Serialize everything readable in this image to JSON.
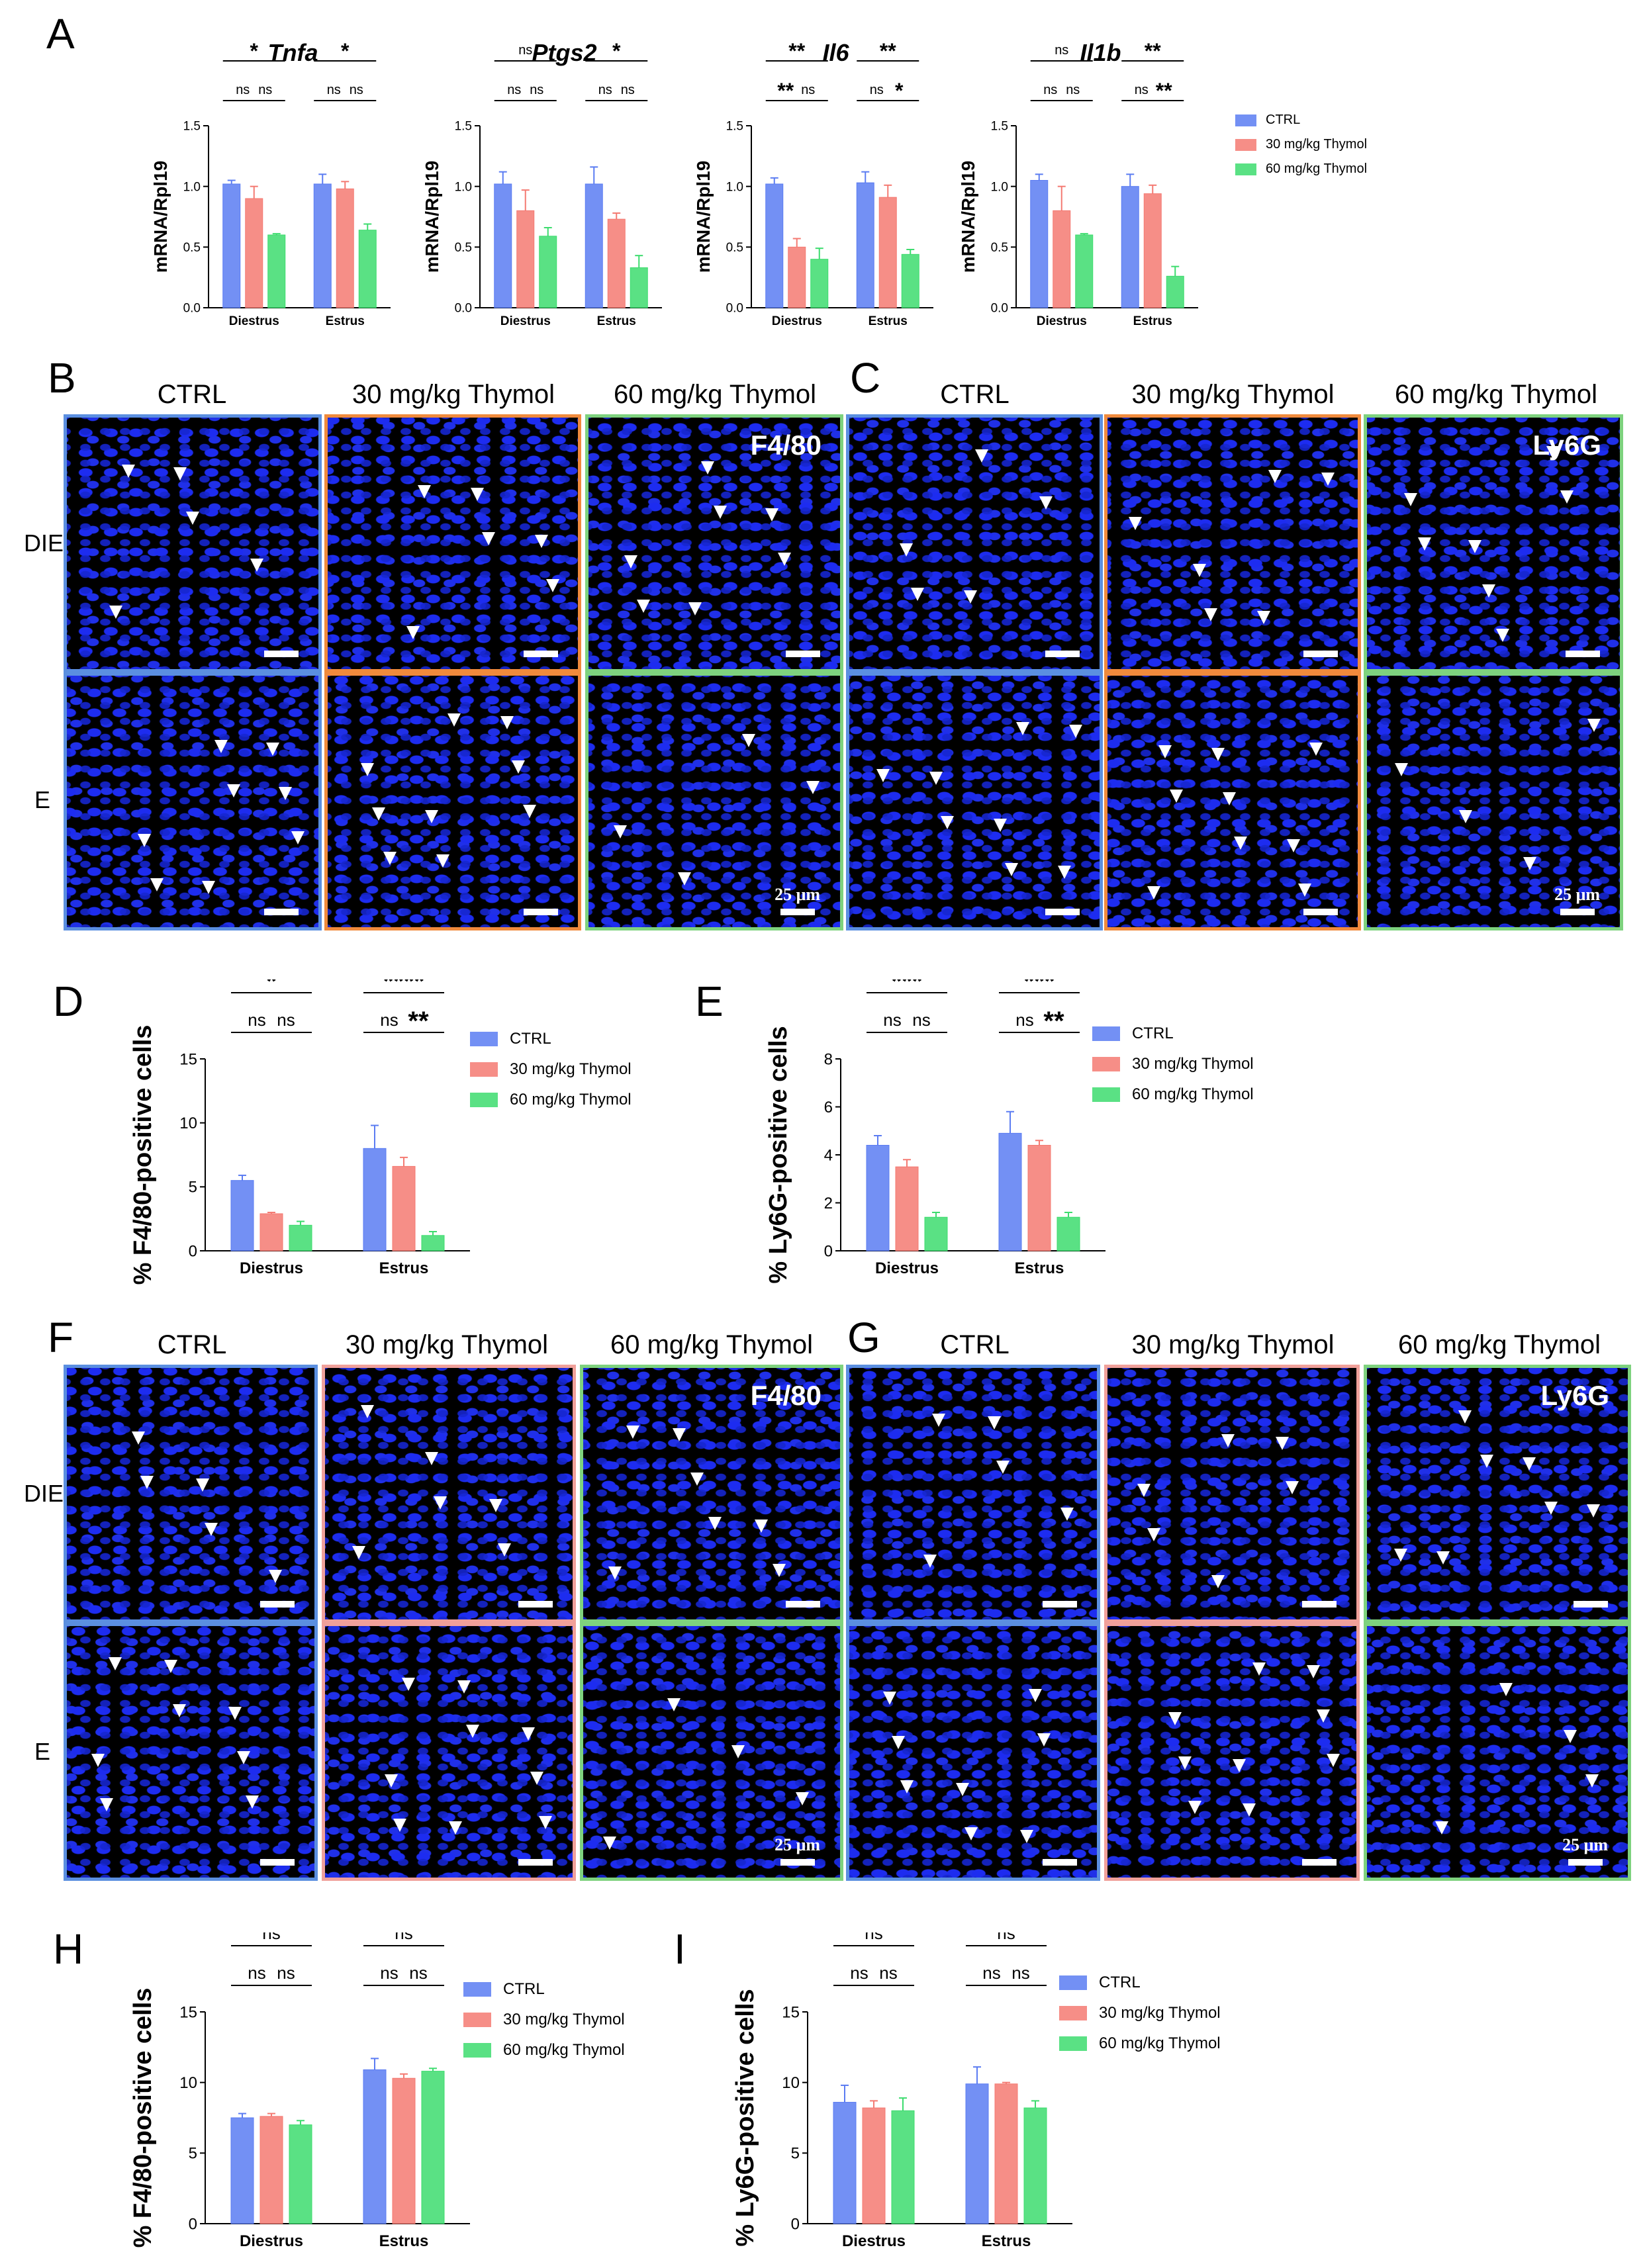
{
  "panels": {
    "A": "A",
    "B": "B",
    "C": "C",
    "D": "D",
    "E": "E",
    "F": "F",
    "G": "G",
    "H": "H",
    "I": "I"
  },
  "legend": [
    "CTRL",
    "30 mg/kg Thymol",
    "60 mg/kg Thymol"
  ],
  "colors": {
    "ctrl": "#5b7cf2",
    "t30": "#f47a72",
    "t60": "#3ddc6e"
  },
  "micro": {
    "cols": [
      "CTRL",
      "30 mg/kg Thymol",
      "60 mg/kg Thymol"
    ],
    "rows": [
      "DIE",
      "E"
    ],
    "stain_BF": "F4/80",
    "stain_CG": "Ly6G",
    "scale": "25 μm"
  },
  "chart_data": [
    {
      "id": "A-Tnfa",
      "type": "bar",
      "title": "Tnfa",
      "ylabel": "mRNA/Rpl19",
      "categories": [
        "Diestrus",
        "Estrus"
      ],
      "ylim": [
        0,
        1.5
      ],
      "yticks": [
        "0.0",
        "0.5",
        "1.0",
        "1.5"
      ],
      "series": [
        {
          "name": "CTRL",
          "values": [
            1.02,
            1.02
          ],
          "err": [
            0.03,
            0.08
          ]
        },
        {
          "name": "30 mg/kg Thymol",
          "values": [
            0.9,
            0.98
          ],
          "err": [
            0.1,
            0.06
          ]
        },
        {
          "name": "60 mg/kg Thymol",
          "values": [
            0.6,
            0.64
          ],
          "err": [
            0.01,
            0.05
          ]
        }
      ],
      "sig": [
        {
          "g": 0,
          "a": 0,
          "b": 2,
          "l": "*",
          "lvl": 1
        },
        {
          "g": 0,
          "a": 0,
          "b": 1,
          "l": "ns",
          "lvl": 0
        },
        {
          "g": 0,
          "a": 1,
          "b": 2,
          "l": "ns",
          "lvl": 0
        },
        {
          "g": 1,
          "a": 0,
          "b": 2,
          "l": "*",
          "lvl": 1
        },
        {
          "g": 1,
          "a": 0,
          "b": 1,
          "l": "ns",
          "lvl": 0
        },
        {
          "g": 1,
          "a": 1,
          "b": 2,
          "l": "ns",
          "lvl": 0
        }
      ]
    },
    {
      "id": "A-Ptgs2",
      "type": "bar",
      "title": "Ptgs2",
      "ylabel": "mRNA/Rpl19",
      "categories": [
        "Diestrus",
        "Estrus"
      ],
      "ylim": [
        0,
        1.5
      ],
      "yticks": [
        "0.0",
        "0.5",
        "1.0",
        "1.5"
      ],
      "series": [
        {
          "name": "CTRL",
          "values": [
            1.02,
            1.02
          ],
          "err": [
            0.1,
            0.14
          ]
        },
        {
          "name": "30 mg/kg Thymol",
          "values": [
            0.8,
            0.73
          ],
          "err": [
            0.17,
            0.05
          ]
        },
        {
          "name": "60 mg/kg Thymol",
          "values": [
            0.59,
            0.33
          ],
          "err": [
            0.07,
            0.1
          ]
        }
      ],
      "sig": [
        {
          "g": 0,
          "a": 0,
          "b": 2,
          "l": "ns",
          "lvl": 1
        },
        {
          "g": 0,
          "a": 0,
          "b": 1,
          "l": "ns",
          "lvl": 0
        },
        {
          "g": 0,
          "a": 1,
          "b": 2,
          "l": "ns",
          "lvl": 0
        },
        {
          "g": 1,
          "a": 0,
          "b": 2,
          "l": "*",
          "lvl": 1
        },
        {
          "g": 1,
          "a": 0,
          "b": 1,
          "l": "ns",
          "lvl": 0
        },
        {
          "g": 1,
          "a": 1,
          "b": 2,
          "l": "ns",
          "lvl": 0
        }
      ]
    },
    {
      "id": "A-Il6",
      "type": "bar",
      "title": "Il6",
      "ylabel": "mRNA/Rpl19",
      "categories": [
        "Diestrus",
        "Estrus"
      ],
      "ylim": [
        0,
        1.5
      ],
      "yticks": [
        "0.0",
        "0.5",
        "1.0",
        "1.5"
      ],
      "series": [
        {
          "name": "CTRL",
          "values": [
            1.02,
            1.03
          ],
          "err": [
            0.05,
            0.09
          ]
        },
        {
          "name": "30 mg/kg Thymol",
          "values": [
            0.5,
            0.91
          ],
          "err": [
            0.07,
            0.1
          ]
        },
        {
          "name": "60 mg/kg Thymol",
          "values": [
            0.4,
            0.44
          ],
          "err": [
            0.09,
            0.04
          ]
        }
      ],
      "sig": [
        {
          "g": 0,
          "a": 0,
          "b": 2,
          "l": "**",
          "lvl": 1
        },
        {
          "g": 0,
          "a": 0,
          "b": 1,
          "l": "**",
          "lvl": 0
        },
        {
          "g": 0,
          "a": 1,
          "b": 2,
          "l": "ns",
          "lvl": 0
        },
        {
          "g": 1,
          "a": 0,
          "b": 2,
          "l": "**",
          "lvl": 1
        },
        {
          "g": 1,
          "a": 0,
          "b": 1,
          "l": "ns",
          "lvl": 0
        },
        {
          "g": 1,
          "a": 1,
          "b": 2,
          "l": "*",
          "lvl": 0
        }
      ]
    },
    {
      "id": "A-Il1b",
      "type": "bar",
      "title": "Il1b",
      "ylabel": "mRNA/Rpl19",
      "categories": [
        "Diestrus",
        "Estrus"
      ],
      "ylim": [
        0,
        1.5
      ],
      "yticks": [
        "0.0",
        "0.5",
        "1.0",
        "1.5"
      ],
      "series": [
        {
          "name": "CTRL",
          "values": [
            1.05,
            1.0
          ],
          "err": [
            0.05,
            0.1
          ]
        },
        {
          "name": "30 mg/kg Thymol",
          "values": [
            0.8,
            0.94
          ],
          "err": [
            0.2,
            0.07
          ]
        },
        {
          "name": "60 mg/kg Thymol",
          "values": [
            0.6,
            0.26
          ],
          "err": [
            0.01,
            0.08
          ]
        }
      ],
      "sig": [
        {
          "g": 0,
          "a": 0,
          "b": 2,
          "l": "ns",
          "lvl": 1
        },
        {
          "g": 0,
          "a": 0,
          "b": 1,
          "l": "ns",
          "lvl": 0
        },
        {
          "g": 0,
          "a": 1,
          "b": 2,
          "l": "ns",
          "lvl": 0
        },
        {
          "g": 1,
          "a": 0,
          "b": 2,
          "l": "**",
          "lvl": 1
        },
        {
          "g": 1,
          "a": 0,
          "b": 1,
          "l": "ns",
          "lvl": 0
        },
        {
          "g": 1,
          "a": 1,
          "b": 2,
          "l": "**",
          "lvl": 0
        }
      ]
    },
    {
      "id": "D",
      "type": "bar",
      "title": "",
      "ylabel": "% F4/80-positive cells",
      "categories": [
        "Diestrus",
        "Estrus"
      ],
      "ylim": [
        0,
        15
      ],
      "yticks": [
        "0",
        "5",
        "10",
        "15"
      ],
      "series": [
        {
          "name": "CTRL",
          "values": [
            5.5,
            8.0
          ],
          "err": [
            0.4,
            1.8
          ]
        },
        {
          "name": "30 mg/kg Thymol",
          "values": [
            2.9,
            6.6
          ],
          "err": [
            0.1,
            0.7
          ]
        },
        {
          "name": "60 mg/kg Thymol",
          "values": [
            2.0,
            1.2
          ],
          "err": [
            0.3,
            0.3
          ]
        }
      ],
      "sig": [
        {
          "g": 0,
          "a": 0,
          "b": 2,
          "l": "*",
          "lvl": 1
        },
        {
          "g": 0,
          "a": 0,
          "b": 1,
          "l": "ns",
          "lvl": 0
        },
        {
          "g": 0,
          "a": 1,
          "b": 2,
          "l": "ns",
          "lvl": 0
        },
        {
          "g": 1,
          "a": 0,
          "b": 2,
          "l": "****",
          "lvl": 1
        },
        {
          "g": 1,
          "a": 0,
          "b": 1,
          "l": "ns",
          "lvl": 0
        },
        {
          "g": 1,
          "a": 1,
          "b": 2,
          "l": "**",
          "lvl": 0
        }
      ]
    },
    {
      "id": "E",
      "type": "bar",
      "title": "",
      "ylabel": "% Ly6G-positive cells",
      "categories": [
        "Diestrus",
        "Estrus"
      ],
      "ylim": [
        0,
        8
      ],
      "yticks": [
        "0",
        "2",
        "4",
        "6",
        "8"
      ],
      "series": [
        {
          "name": "CTRL",
          "values": [
            4.4,
            4.9
          ],
          "err": [
            0.4,
            0.9
          ]
        },
        {
          "name": "30 mg/kg Thymol",
          "values": [
            3.5,
            4.4
          ],
          "err": [
            0.3,
            0.2
          ]
        },
        {
          "name": "60 mg/kg Thymol",
          "values": [
            1.4,
            1.4
          ],
          "err": [
            0.2,
            0.2
          ]
        }
      ],
      "sig": [
        {
          "g": 0,
          "a": 0,
          "b": 2,
          "l": "***",
          "lvl": 1
        },
        {
          "g": 0,
          "a": 0,
          "b": 1,
          "l": "ns",
          "lvl": 0
        },
        {
          "g": 0,
          "a": 1,
          "b": 2,
          "l": "ns",
          "lvl": 0
        },
        {
          "g": 1,
          "a": 0,
          "b": 2,
          "l": "***",
          "lvl": 1
        },
        {
          "g": 1,
          "a": 0,
          "b": 1,
          "l": "ns",
          "lvl": 0
        },
        {
          "g": 1,
          "a": 1,
          "b": 2,
          "l": "**",
          "lvl": 0
        }
      ]
    },
    {
      "id": "H",
      "type": "bar",
      "title": "",
      "ylabel": "% F4/80-positive cells",
      "categories": [
        "Diestrus",
        "Estrus"
      ],
      "ylim": [
        0,
        15
      ],
      "yticks": [
        "0",
        "5",
        "10",
        "15"
      ],
      "series": [
        {
          "name": "CTRL",
          "values": [
            7.5,
            10.9
          ],
          "err": [
            0.3,
            0.8
          ]
        },
        {
          "name": "30 mg/kg Thymol",
          "values": [
            7.6,
            10.3
          ],
          "err": [
            0.2,
            0.3
          ]
        },
        {
          "name": "60 mg/kg Thymol",
          "values": [
            7.0,
            10.8
          ],
          "err": [
            0.3,
            0.2
          ]
        }
      ],
      "sig": [
        {
          "g": 0,
          "a": 0,
          "b": 2,
          "l": "ns",
          "lvl": 1
        },
        {
          "g": 0,
          "a": 0,
          "b": 1,
          "l": "ns",
          "lvl": 0
        },
        {
          "g": 0,
          "a": 1,
          "b": 2,
          "l": "ns",
          "lvl": 0
        },
        {
          "g": 1,
          "a": 0,
          "b": 2,
          "l": "ns",
          "lvl": 1
        },
        {
          "g": 1,
          "a": 0,
          "b": 1,
          "l": "ns",
          "lvl": 0
        },
        {
          "g": 1,
          "a": 1,
          "b": 2,
          "l": "ns",
          "lvl": 0
        }
      ]
    },
    {
      "id": "I",
      "type": "bar",
      "title": "",
      "ylabel": "% Ly6G-positive cells",
      "categories": [
        "Diestrus",
        "Estrus"
      ],
      "ylim": [
        0,
        15
      ],
      "yticks": [
        "0",
        "5",
        "10",
        "15"
      ],
      "series": [
        {
          "name": "CTRL",
          "values": [
            8.6,
            9.9
          ],
          "err": [
            1.2,
            1.2
          ]
        },
        {
          "name": "30 mg/kg Thymol",
          "values": [
            8.2,
            9.9
          ],
          "err": [
            0.5,
            0.1
          ]
        },
        {
          "name": "60 mg/kg Thymol",
          "values": [
            8.0,
            8.2
          ],
          "err": [
            0.9,
            0.5
          ]
        }
      ],
      "sig": [
        {
          "g": 0,
          "a": 0,
          "b": 2,
          "l": "ns",
          "lvl": 1
        },
        {
          "g": 0,
          "a": 0,
          "b": 1,
          "l": "ns",
          "lvl": 0
        },
        {
          "g": 0,
          "a": 1,
          "b": 2,
          "l": "ns",
          "lvl": 0
        },
        {
          "g": 1,
          "a": 0,
          "b": 2,
          "l": "ns",
          "lvl": 1
        },
        {
          "g": 1,
          "a": 0,
          "b": 1,
          "l": "ns",
          "lvl": 0
        },
        {
          "g": 1,
          "a": 1,
          "b": 2,
          "l": "ns",
          "lvl": 0
        }
      ]
    }
  ]
}
